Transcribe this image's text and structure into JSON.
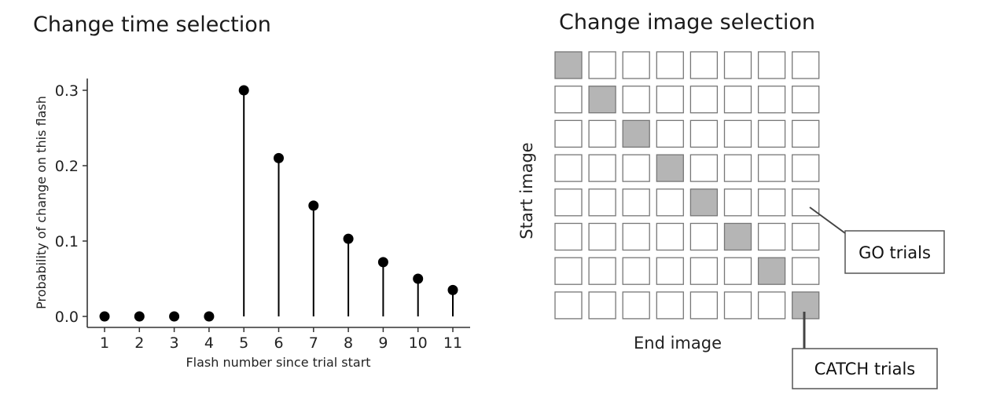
{
  "chart_data": [
    {
      "type": "stem",
      "title": "Change time selection",
      "xlabel": "Flash number since trial start",
      "ylabel": "Probability of change on this flash",
      "x": [
        1,
        2,
        3,
        4,
        5,
        6,
        7,
        8,
        9,
        10,
        11
      ],
      "values": [
        0.0,
        0.0,
        0.0,
        0.0,
        0.3,
        0.21,
        0.147,
        0.103,
        0.072,
        0.05,
        0.035
      ],
      "ylim": [
        0,
        0.3
      ],
      "yticks": [
        "0.0",
        "0.1",
        "0.2",
        "0.3"
      ],
      "xticks": [
        "1",
        "2",
        "3",
        "4",
        "5",
        "6",
        "7",
        "8",
        "9",
        "10",
        "11"
      ],
      "grid": false,
      "colors": {
        "marker": "#000000",
        "axis": "#333333"
      }
    },
    {
      "type": "heatmap",
      "title": "Change image selection",
      "xlabel": "End image",
      "ylabel": "Start image",
      "rows": 8,
      "cols": 8,
      "highlight": "diagonal",
      "annotations": [
        {
          "label": "GO trials",
          "target": "off-diagonal cell (row 5, col 8)"
        },
        {
          "label": "CATCH trials",
          "target": "diagonal cell (row 8, col 8)"
        }
      ],
      "colors": {
        "highlight_cell": "#b5b5b5",
        "empty_cell": "#ffffff",
        "cell_border": "#777777"
      }
    }
  ]
}
